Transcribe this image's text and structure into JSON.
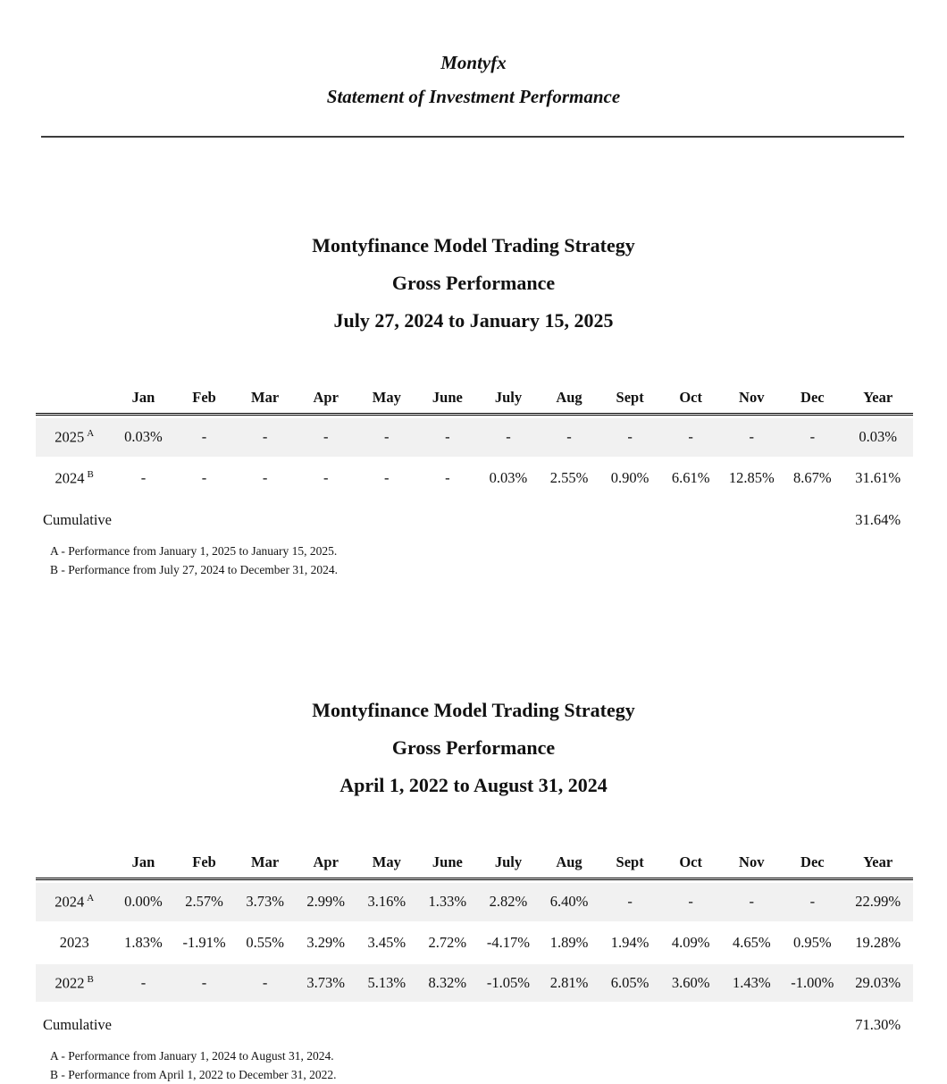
{
  "header": {
    "brand": "Montyfx",
    "subtitle": "Statement of Investment Performance"
  },
  "tables": [
    {
      "title": [
        "Montyfinance Model Trading Strategy",
        "Gross Performance",
        "July 27, 2024 to January 15, 2025"
      ],
      "columns": [
        "",
        "Jan",
        "Feb",
        "Mar",
        "Apr",
        "May",
        "June",
        "July",
        "Aug",
        "Sept",
        "Oct",
        "Nov",
        "Dec",
        "Year"
      ],
      "rows": [
        {
          "label": "2025",
          "sup": "A",
          "shaded": true,
          "values": [
            "0.03%",
            "-",
            "-",
            "-",
            "-",
            "-",
            "-",
            "-",
            "-",
            "-",
            "-",
            "-",
            "0.03%"
          ]
        },
        {
          "label": "2024",
          "sup": "B",
          "shaded": false,
          "values": [
            "-",
            "-",
            "-",
            "-",
            "-",
            "-",
            "0.03%",
            "2.55%",
            "0.90%",
            "6.61%",
            "12.85%",
            "8.67%",
            "31.61%"
          ]
        }
      ],
      "cumulative_label": "Cumulative",
      "cumulative_value": "31.64%",
      "footnotes": [
        "A - Performance from January 1, 2025 to January 15, 2025.",
        "B - Performance from July 27, 2024 to December 31, 2024."
      ]
    },
    {
      "title": [
        "Montyfinance Model Trading Strategy",
        "Gross Performance",
        "April 1, 2022 to August 31, 2024"
      ],
      "columns": [
        "",
        "Jan",
        "Feb",
        "Mar",
        "Apr",
        "May",
        "June",
        "July",
        "Aug",
        "Sept",
        "Oct",
        "Nov",
        "Dec",
        "Year"
      ],
      "rows": [
        {
          "label": "2024",
          "sup": "A",
          "shaded": true,
          "values": [
            "0.00%",
            "2.57%",
            "3.73%",
            "2.99%",
            "3.16%",
            "1.33%",
            "2.82%",
            "6.40%",
            "-",
            "-",
            "-",
            "-",
            "22.99%"
          ]
        },
        {
          "label": "2023",
          "sup": "",
          "shaded": false,
          "values": [
            "1.83%",
            "-1.91%",
            "0.55%",
            "3.29%",
            "3.45%",
            "2.72%",
            "-4.17%",
            "1.89%",
            "1.94%",
            "4.09%",
            "4.65%",
            "0.95%",
            "19.28%"
          ]
        },
        {
          "label": "2022",
          "sup": "B",
          "shaded": true,
          "values": [
            "-",
            "-",
            "-",
            "3.73%",
            "5.13%",
            "8.32%",
            "-1.05%",
            "2.81%",
            "6.05%",
            "3.60%",
            "1.43%",
            "-1.00%",
            "29.03%"
          ]
        }
      ],
      "cumulative_label": "Cumulative",
      "cumulative_value": "71.30%",
      "footnotes": [
        "A - Performance from January 1, 2024 to August 31, 2024.",
        "B - Performance from April 1, 2022 to December 31, 2022."
      ]
    }
  ]
}
